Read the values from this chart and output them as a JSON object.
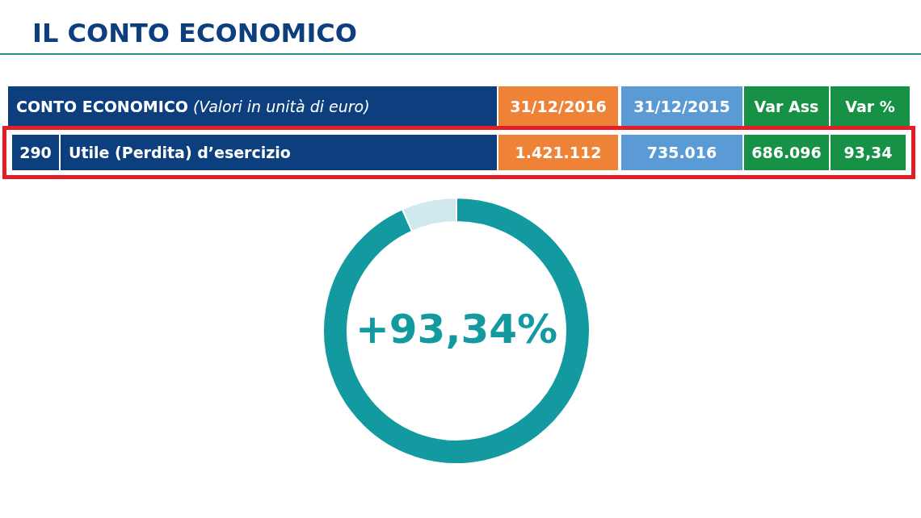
{
  "chart_data": [
    {
      "type": "other",
      "title": "IL CONTO ECONOMICO",
      "annotations": [
        "CONTO ECONOMICO",
        "(Valori in unità di euro)",
        "31/12/2016",
        "31/12/2015",
        "Var Ass",
        "Var %",
        "290",
        "Utile (Perdita) d’esercizio",
        "1.421.112",
        "735.016",
        "686.096",
        "93,34"
      ]
    },
    {
      "type": "donut",
      "categories": [
        null,
        null
      ],
      "values": [
        93.34,
        6.66
      ],
      "colors": [
        "#139aa0",
        "#cfe9ec"
      ],
      "annotations": [
        "+93,34%"
      ]
    }
  ]
}
